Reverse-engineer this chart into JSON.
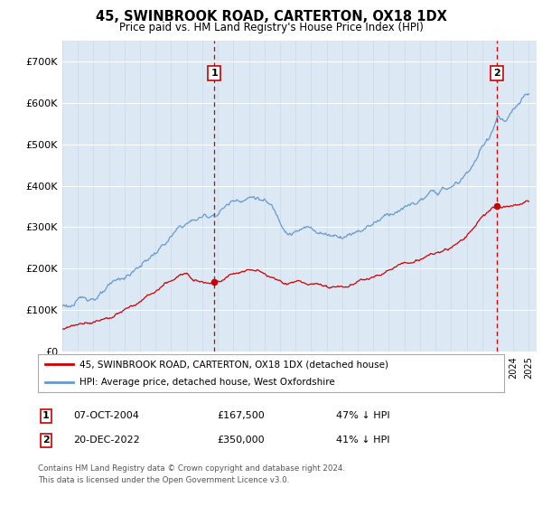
{
  "title": "45, SWINBROOK ROAD, CARTERTON, OX18 1DX",
  "subtitle": "Price paid vs. HM Land Registry's House Price Index (HPI)",
  "plot_bg_color": "#dce9f5",
  "hpi_color": "#6699cc",
  "price_color": "#cc0000",
  "ylim": [
    0,
    750000
  ],
  "yticks": [
    0,
    100000,
    200000,
    300000,
    400000,
    500000,
    600000,
    700000
  ],
  "ytick_labels": [
    "£0",
    "£100K",
    "£200K",
    "£300K",
    "£400K",
    "£500K",
    "£600K",
    "£700K"
  ],
  "marker1_date": 2004.77,
  "marker1_price": 167500,
  "marker1_label": "1",
  "marker2_date": 2022.97,
  "marker2_price": 350000,
  "marker2_label": "2",
  "legend_line1": "45, SWINBROOK ROAD, CARTERTON, OX18 1DX (detached house)",
  "legend_line2": "HPI: Average price, detached house, West Oxfordshire",
  "table_row1_num": "1",
  "table_row1_date": "07-OCT-2004",
  "table_row1_price": "£167,500",
  "table_row1_note": "47% ↓ HPI",
  "table_row2_num": "2",
  "table_row2_date": "20-DEC-2022",
  "table_row2_price": "£350,000",
  "table_row2_note": "41% ↓ HPI",
  "footer": "Contains HM Land Registry data © Crown copyright and database right 2024.\nThis data is licensed under the Open Government Licence v3.0.",
  "xmin": 1995,
  "xmax": 2025.5,
  "hpi_anchors_x": [
    1995.0,
    1995.5,
    1996.0,
    1996.5,
    1997.0,
    1997.5,
    1998.0,
    1998.5,
    1999.0,
    1999.5,
    2000.0,
    2000.5,
    2001.0,
    2001.5,
    2002.0,
    2002.5,
    2003.0,
    2003.5,
    2004.0,
    2004.5,
    2005.0,
    2005.5,
    2006.0,
    2006.5,
    2007.0,
    2007.5,
    2008.0,
    2008.5,
    2009.0,
    2009.5,
    2010.0,
    2010.5,
    2011.0,
    2011.5,
    2012.0,
    2012.5,
    2013.0,
    2013.5,
    2014.0,
    2014.5,
    2015.0,
    2015.5,
    2016.0,
    2016.5,
    2017.0,
    2017.5,
    2018.0,
    2018.5,
    2019.0,
    2019.5,
    2020.0,
    2020.5,
    2021.0,
    2021.5,
    2022.0,
    2022.5,
    2023.0,
    2023.5,
    2024.0,
    2024.5,
    2025.0
  ],
  "hpi_anchors_y": [
    110000,
    112000,
    118000,
    125000,
    132000,
    140000,
    148000,
    158000,
    168000,
    180000,
    195000,
    212000,
    228000,
    245000,
    262000,
    278000,
    290000,
    298000,
    305000,
    308000,
    320000,
    338000,
    350000,
    360000,
    368000,
    370000,
    360000,
    340000,
    310000,
    295000,
    298000,
    302000,
    300000,
    296000,
    290000,
    292000,
    295000,
    305000,
    315000,
    328000,
    340000,
    355000,
    368000,
    378000,
    385000,
    390000,
    398000,
    405000,
    410000,
    415000,
    420000,
    428000,
    450000,
    480000,
    510000,
    540000,
    590000,
    570000,
    590000,
    610000,
    620000
  ],
  "price_anchors_x": [
    1995.0,
    1995.5,
    1996.0,
    1996.5,
    1997.0,
    1997.5,
    1998.0,
    1998.5,
    1999.0,
    1999.5,
    2000.0,
    2000.5,
    2001.0,
    2001.5,
    2002.0,
    2002.5,
    2003.0,
    2003.5,
    2004.0,
    2004.5,
    2004.77,
    2005.0,
    2005.5,
    2006.0,
    2006.5,
    2007.0,
    2007.5,
    2008.0,
    2008.5,
    2009.0,
    2009.5,
    2010.0,
    2010.5,
    2011.0,
    2011.5,
    2012.0,
    2012.5,
    2013.0,
    2013.5,
    2014.0,
    2014.5,
    2015.0,
    2015.5,
    2016.0,
    2016.5,
    2017.0,
    2017.5,
    2018.0,
    2018.5,
    2019.0,
    2019.5,
    2020.0,
    2020.5,
    2021.0,
    2021.5,
    2022.0,
    2022.5,
    2022.97,
    2023.0,
    2023.5,
    2024.0,
    2024.5,
    2025.0
  ],
  "price_anchors_y": [
    55000,
    57000,
    60000,
    65000,
    70000,
    76000,
    82000,
    88000,
    95000,
    103000,
    112000,
    122000,
    132000,
    142000,
    152000,
    160000,
    165000,
    162000,
    160000,
    163000,
    167500,
    170000,
    178000,
    188000,
    195000,
    198000,
    196000,
    192000,
    182000,
    172000,
    168000,
    170000,
    168000,
    165000,
    163000,
    160000,
    162000,
    165000,
    170000,
    178000,
    186000,
    195000,
    205000,
    215000,
    222000,
    228000,
    233000,
    240000,
    245000,
    250000,
    255000,
    260000,
    268000,
    285000,
    305000,
    330000,
    345000,
    350000,
    348000,
    345000,
    352000,
    358000,
    362000
  ]
}
